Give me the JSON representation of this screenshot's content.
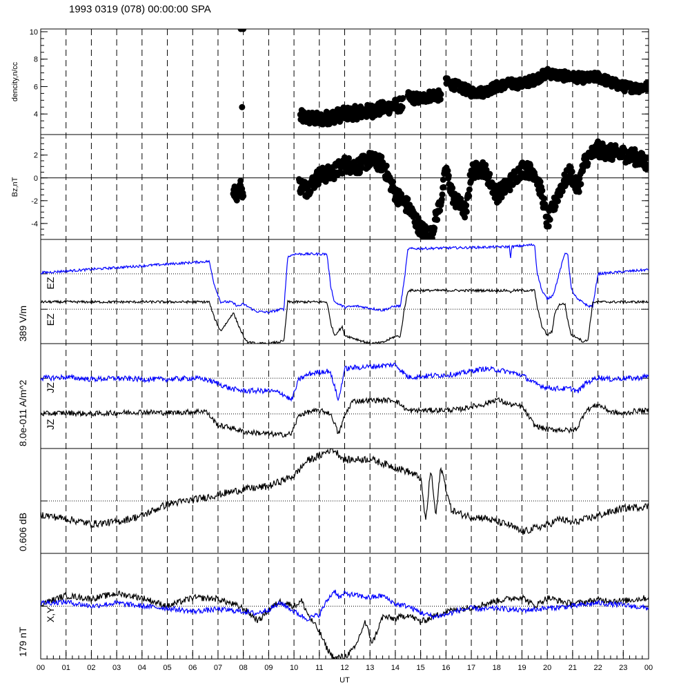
{
  "header": {
    "title": "1993 0319 (078) 00:00:00 SPA"
  },
  "chart_data": {
    "type": "line",
    "x_unit_label": "UT",
    "x_range": [
      0,
      24
    ],
    "x_ticks": [
      "00",
      "01",
      "02",
      "03",
      "04",
      "05",
      "06",
      "07",
      "08",
      "09",
      "10",
      "11",
      "12",
      "13",
      "14",
      "15",
      "16",
      "17",
      "18",
      "19",
      "20",
      "21",
      "22",
      "23",
      "00"
    ],
    "colors": {
      "black": "#000000",
      "blue": "#0000ff",
      "axis": "#000000"
    },
    "panels": [
      {
        "key": "density",
        "ylabel": "dencity,n/cc",
        "ylim": [
          2.5,
          10.2
        ],
        "yticks": [
          "4",
          "6",
          "8",
          "10"
        ],
        "yticks_values": [
          4,
          6,
          8,
          10
        ],
        "series": [
          {
            "style": "dots",
            "color": "black",
            "segments": [
              {
                "x": [
                  7.9,
                  7.95,
                  8.0
                ],
                "y": [
                  10.2,
                  4.5,
                  10.2
                ],
                "noise": 0.0
              },
              {
                "x": [
                  10.25,
                  11.0,
                  11.5,
                  12.0,
                  12.5,
                  13.0,
                  13.5,
                  14.0,
                  14.3
                ],
                "y": [
                  3.8,
                  3.6,
                  3.8,
                  4.0,
                  4.1,
                  4.2,
                  4.4,
                  4.6,
                  4.7
                ],
                "noise": 0.5
              },
              {
                "x": [
                  14.5,
                  15.0,
                  15.5,
                  15.8
                ],
                "y": [
                  5.2,
                  5.1,
                  5.4,
                  5.3
                ],
                "noise": 0.4
              },
              {
                "x": [
                  16.0,
                  16.5,
                  17.0,
                  17.5,
                  18.0,
                  18.5,
                  19.0,
                  19.5,
                  20.0,
                  20.5,
                  21.0,
                  21.5,
                  22.0,
                  22.5,
                  23.0,
                  23.5,
                  24.0
                ],
                "y": [
                  6.3,
                  6.0,
                  5.6,
                  5.6,
                  6.0,
                  6.2,
                  6.2,
                  6.5,
                  7.0,
                  6.8,
                  6.7,
                  6.6,
                  6.7,
                  6.3,
                  6.0,
                  5.9,
                  6.0
                ],
                "noise": 0.35
              }
            ]
          }
        ]
      },
      {
        "key": "bz",
        "ylabel": "Bz,nT",
        "ylim": [
          -5.4,
          3.8
        ],
        "yticks": [
          "-4",
          "-2",
          "0",
          "2"
        ],
        "yticks_values": [
          -4,
          -2,
          0,
          2
        ],
        "zero_line": true,
        "series": [
          {
            "style": "dots",
            "color": "black",
            "segments": [
              {
                "x": [
                  7.6,
                  7.75,
                  7.9,
                  8.0
                ],
                "y": [
                  -1.0,
                  -1.5,
                  -0.6,
                  -1.6
                ],
                "noise": 0.5
              },
              {
                "x": [
                  10.2,
                  10.5,
                  11.0,
                  11.5,
                  12.0,
                  12.5,
                  13.0,
                  13.5,
                  14.0,
                  14.5,
                  15.0,
                  15.4,
                  15.8,
                  16.0,
                  16.3,
                  16.8,
                  17.0,
                  17.5,
                  18.0,
                  18.5,
                  19.0,
                  19.5,
                  19.8,
                  20.0,
                  20.5,
                  20.9,
                  21.2,
                  21.5,
                  22.0,
                  22.5,
                  23.0,
                  23.5,
                  24.0
                ],
                "y": [
                  -0.6,
                  -1.0,
                  0.2,
                  0.4,
                  1.2,
                  1.0,
                  1.6,
                  1.2,
                  -1.4,
                  -2.5,
                  -4.5,
                  -5.0,
                  -2.0,
                  0.7,
                  -1.8,
                  -3.0,
                  0.6,
                  0.8,
                  -1.5,
                  -0.5,
                  0.8,
                  0.5,
                  -1.5,
                  -4.0,
                  -1.0,
                  0.5,
                  -1.0,
                  1.6,
                  2.5,
                  2.2,
                  2.1,
                  1.8,
                  1.2
                ],
                "noise": 0.7
              }
            ]
          }
        ]
      },
      {
        "key": "ez",
        "ylabel": "389 V/m",
        "inner_labels": [
          "EZ",
          "EZ"
        ],
        "ylim": [
          0,
          1
        ],
        "ref_lines": [
          0.67,
          0.33
        ],
        "series": [
          {
            "style": "line",
            "color": "blue",
            "noise": 0.012,
            "x": [
              0,
              6.65,
              6.85,
              7.1,
              7.5,
              7.8,
              8.0,
              8.5,
              9.0,
              9.5,
              9.6,
              9.75,
              10.0,
              11.3,
              11.45,
              11.6,
              12.0,
              12.5,
              13.0,
              13.5,
              14.0,
              14.2,
              14.35,
              14.5,
              18.5,
              18.55,
              18.6,
              19.5,
              19.6,
              19.8,
              20.0,
              20.2,
              20.3,
              20.5,
              20.7,
              20.8,
              20.95,
              21.2,
              21.4,
              21.6,
              21.8,
              22.0,
              23.5,
              24.0
            ],
            "y": [
              0.68,
              0.79,
              0.57,
              0.4,
              0.4,
              0.36,
              0.38,
              0.31,
              0.3,
              0.33,
              0.33,
              0.83,
              0.86,
              0.86,
              0.55,
              0.4,
              0.35,
              0.36,
              0.34,
              0.32,
              0.36,
              0.36,
              0.6,
              0.91,
              0.93,
              0.83,
              0.93,
              0.95,
              0.68,
              0.5,
              0.43,
              0.46,
              0.52,
              0.7,
              0.87,
              0.87,
              0.52,
              0.42,
              0.4,
              0.36,
              0.36,
              0.67,
              0.7,
              0.71
            ]
          },
          {
            "style": "line",
            "color": "black",
            "noise": 0.012,
            "x": [
              0,
              6.65,
              6.85,
              7.1,
              7.4,
              7.6,
              7.8,
              8.1,
              8.5,
              9.0,
              9.5,
              9.6,
              9.75,
              10.0,
              11.3,
              11.45,
              11.6,
              11.9,
              12.0,
              12.5,
              13.0,
              13.5,
              14.0,
              14.2,
              14.35,
              14.5,
              18.5,
              18.55,
              18.6,
              19.5,
              19.6,
              19.8,
              20.0,
              20.2,
              20.3,
              20.5,
              20.7,
              20.8,
              20.95,
              21.2,
              21.4,
              21.6,
              21.8,
              22.0,
              23.5,
              24.0
            ],
            "y": [
              0.4,
              0.4,
              0.25,
              0.12,
              0.22,
              0.3,
              0.18,
              0.02,
              0.0,
              0.0,
              0.02,
              0.02,
              0.4,
              0.4,
              0.4,
              0.2,
              0.08,
              0.16,
              0.08,
              0.04,
              0.0,
              0.01,
              0.07,
              0.07,
              0.32,
              0.51,
              0.51,
              0.48,
              0.51,
              0.51,
              0.35,
              0.16,
              0.08,
              0.12,
              0.3,
              0.38,
              0.38,
              0.23,
              0.08,
              0.06,
              0.02,
              0.03,
              0.4,
              0.4,
              0.4,
              0.4
            ]
          }
        ]
      },
      {
        "key": "jz",
        "ylabel": "8.0e-011 A/m^2",
        "inner_labels": [
          "JZ",
          "JZ"
        ],
        "ylim": [
          0,
          1
        ],
        "ref_lines": [
          0.67,
          0.33
        ],
        "series": [
          {
            "style": "line",
            "color": "blue",
            "noise": 0.025,
            "x": [
              0,
              1,
              2,
              3,
              4,
              5,
              6,
              6.5,
              7,
              7.5,
              8,
              9,
              9.5,
              9.9,
              10.2,
              10.6,
              11,
              11.4,
              11.6,
              11.75,
              12.0,
              12.3,
              13,
              14.0,
              14.3,
              14.5,
              16.5,
              17,
              17.5,
              18,
              18.5,
              19,
              19.5,
              20,
              20.5,
              21,
              21.2,
              21.5,
              22,
              22.5,
              23,
              23.5,
              24
            ],
            "y": [
              0.67,
              0.68,
              0.66,
              0.67,
              0.66,
              0.66,
              0.67,
              0.66,
              0.62,
              0.57,
              0.55,
              0.55,
              0.53,
              0.46,
              0.66,
              0.71,
              0.73,
              0.74,
              0.6,
              0.45,
              0.76,
              0.77,
              0.78,
              0.8,
              0.73,
              0.68,
              0.71,
              0.74,
              0.76,
              0.75,
              0.73,
              0.7,
              0.62,
              0.58,
              0.57,
              0.57,
              0.54,
              0.62,
              0.68,
              0.66,
              0.67,
              0.67,
              0.69
            ]
          },
          {
            "style": "line",
            "color": "black",
            "noise": 0.025,
            "x": [
              0,
              1,
              2,
              3,
              4,
              5,
              6,
              6.5,
              7,
              7.5,
              8,
              9,
              9.5,
              9.9,
              10.2,
              10.6,
              11,
              11.4,
              11.6,
              11.75,
              12.0,
              12.3,
              13,
              14.0,
              14.3,
              14.5,
              16.5,
              17,
              17.5,
              18,
              18.5,
              19,
              19.5,
              20,
              20.5,
              21,
              21.2,
              21.5,
              22,
              22.5,
              23,
              23.5,
              24
            ],
            "y": [
              0.33,
              0.34,
              0.33,
              0.34,
              0.35,
              0.34,
              0.35,
              0.36,
              0.22,
              0.2,
              0.16,
              0.14,
              0.13,
              0.14,
              0.32,
              0.35,
              0.36,
              0.34,
              0.25,
              0.13,
              0.31,
              0.45,
              0.46,
              0.46,
              0.4,
              0.36,
              0.37,
              0.4,
              0.42,
              0.47,
              0.42,
              0.4,
              0.22,
              0.18,
              0.18,
              0.17,
              0.2,
              0.36,
              0.42,
              0.35,
              0.33,
              0.36,
              0.36
            ]
          }
        ]
      },
      {
        "key": "db",
        "ylabel": "0.606 dB",
        "ylim": [
          0,
          1
        ],
        "ref_lines": [
          0.5
        ],
        "series": [
          {
            "style": "line",
            "color": "black",
            "noise": 0.035,
            "x": [
              0,
              1,
              2,
              3,
              4,
              5,
              6,
              7,
              8,
              9,
              10,
              10.5,
              11,
              11.5,
              11.7,
              12,
              13,
              14,
              14.5,
              15,
              15.2,
              15.4,
              15.6,
              15.8,
              16.0,
              16.2,
              16.5,
              17,
              17.5,
              18,
              18.5,
              19,
              19.5,
              20,
              20.5,
              21,
              22,
              23,
              24
            ],
            "y": [
              0.37,
              0.33,
              0.28,
              0.3,
              0.36,
              0.47,
              0.51,
              0.56,
              0.61,
              0.64,
              0.74,
              0.88,
              0.93,
              1.0,
              0.96,
              0.89,
              0.9,
              0.82,
              0.78,
              0.72,
              0.3,
              0.81,
              0.35,
              0.83,
              0.62,
              0.42,
              0.38,
              0.35,
              0.34,
              0.3,
              0.27,
              0.2,
              0.24,
              0.27,
              0.33,
              0.29,
              0.36,
              0.43,
              0.45
            ]
          }
        ]
      },
      {
        "key": "xy",
        "ylabel": "179 nT",
        "inner_labels": [
          "X,Y"
        ],
        "ylim": [
          0,
          1
        ],
        "ref_lines": [
          0.5
        ],
        "series": [
          {
            "style": "line",
            "color": "black",
            "noise": 0.03,
            "x": [
              0,
              1,
              2,
              3,
              4,
              5,
              6,
              7,
              8,
              8.6,
              9,
              9.5,
              10,
              10.3,
              10.6,
              11,
              11.3,
              11.6,
              11.8,
              12,
              12.4,
              12.8,
              13.1,
              13.5,
              14,
              14.5,
              15,
              16,
              17,
              18,
              19,
              19.5,
              20,
              21,
              22,
              23,
              24
            ],
            "y": [
              0.52,
              0.6,
              0.57,
              0.62,
              0.58,
              0.5,
              0.58,
              0.57,
              0.48,
              0.36,
              0.47,
              0.55,
              0.5,
              0.55,
              0.4,
              0.26,
              0.1,
              0.0,
              0.02,
              0.02,
              0.1,
              0.35,
              0.15,
              0.4,
              0.38,
              0.42,
              0.35,
              0.45,
              0.49,
              0.55,
              0.59,
              0.5,
              0.58,
              0.52,
              0.56,
              0.55,
              0.58
            ]
          },
          {
            "style": "line",
            "color": "blue",
            "noise": 0.025,
            "x": [
              0,
              1,
              2,
              3,
              4,
              5,
              6,
              7,
              8,
              8.5,
              9,
              9.5,
              10,
              10.5,
              11,
              11.3,
              11.6,
              11.8,
              12,
              12.5,
              13,
              13.5,
              14,
              14.5,
              15,
              15.5,
              16,
              16.5,
              17,
              17.5,
              18,
              18.5,
              19,
              20,
              21,
              22,
              23,
              24
            ],
            "y": [
              0.53,
              0.54,
              0.5,
              0.53,
              0.5,
              0.48,
              0.45,
              0.47,
              0.45,
              0.43,
              0.47,
              0.53,
              0.45,
              0.38,
              0.42,
              0.55,
              0.65,
              0.58,
              0.62,
              0.6,
              0.58,
              0.6,
              0.52,
              0.5,
              0.44,
              0.4,
              0.42,
              0.46,
              0.48,
              0.47,
              0.48,
              0.47,
              0.46,
              0.48,
              0.5,
              0.53,
              0.51,
              0.48
            ]
          }
        ]
      }
    ]
  }
}
